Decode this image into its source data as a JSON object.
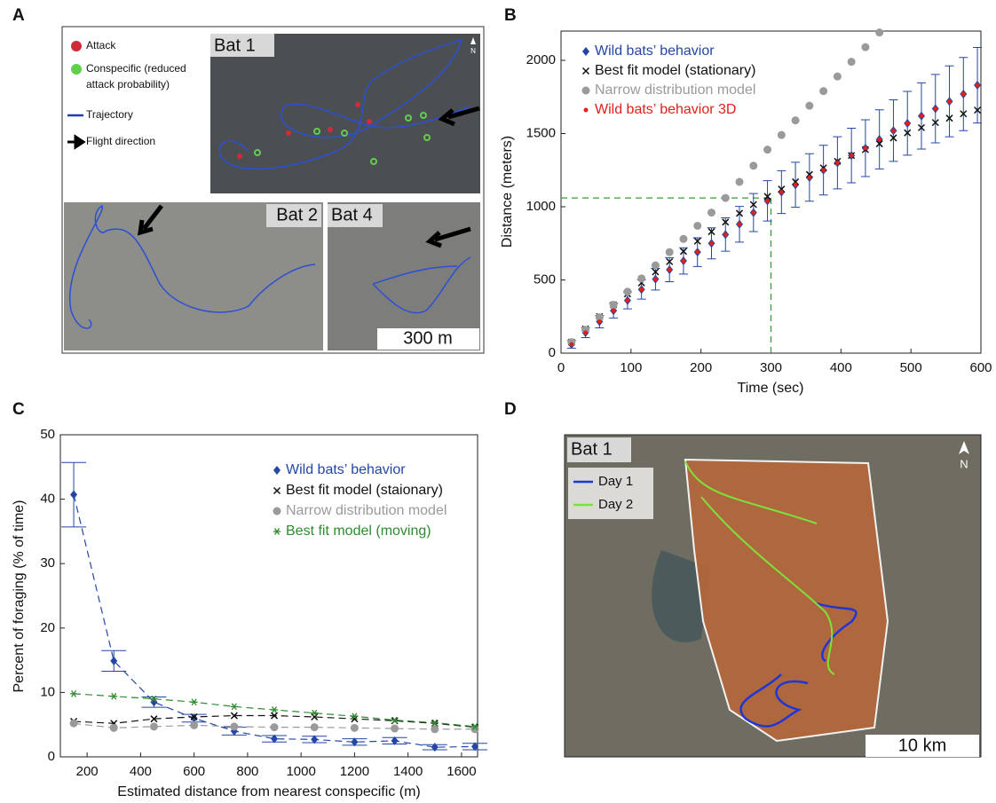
{
  "chart_data": [
    {
      "type": "scatter",
      "label": "B",
      "xlabel": "Time (sec)",
      "ylabel": "Distance (meters)",
      "xlim": [
        0,
        600
      ],
      "xticks": [
        0,
        100,
        200,
        300,
        400,
        500,
        600
      ],
      "ylim": [
        0,
        2200
      ],
      "yticks": [
        0,
        500,
        1000,
        1500,
        2000
      ],
      "x": [
        15,
        35,
        55,
        75,
        95,
        115,
        135,
        155,
        175,
        195,
        215,
        235,
        255,
        275,
        295,
        315,
        335,
        355,
        375,
        395,
        415,
        435,
        455,
        475,
        495,
        515,
        535,
        555,
        575,
        595
      ],
      "series": [
        {
          "name": "Wild bats’ behavior",
          "color": "#2446a6",
          "marker": "diamond",
          "values": [
            60,
            140,
            215,
            290,
            360,
            435,
            505,
            570,
            630,
            690,
            750,
            810,
            880,
            960,
            1040,
            1100,
            1150,
            1200,
            1250,
            1300,
            1350,
            1400,
            1460,
            1520,
            1570,
            1620,
            1670,
            1720,
            1770,
            1830
          ],
          "errors": [
            26,
            34,
            42,
            50,
            58,
            66,
            74,
            82,
            90,
            98,
            106,
            114,
            122,
            130,
            138,
            146,
            154,
            162,
            170,
            178,
            186,
            194,
            202,
            210,
            218,
            226,
            234,
            242,
            250,
            258
          ]
        },
        {
          "name": "Best fit model (stationary)",
          "color": "#111111",
          "marker": "x",
          "values": [
            75,
            165,
            250,
            330,
            405,
            480,
            555,
            625,
            695,
            765,
            830,
            895,
            955,
            1015,
            1070,
            1120,
            1170,
            1220,
            1265,
            1310,
            1350,
            1390,
            1430,
            1470,
            1505,
            1540,
            1575,
            1605,
            1635,
            1660
          ]
        },
        {
          "name": "Narrow distribution model",
          "color": "#9a9a9a",
          "marker": "circle",
          "values": [
            75,
            160,
            245,
            330,
            420,
            510,
            600,
            690,
            780,
            870,
            960,
            1060,
            1170,
            1280,
            1390,
            1490,
            1590,
            1690,
            1790,
            1890,
            1990,
            2090,
            2190,
            null,
            null,
            null,
            null,
            null,
            null,
            null
          ]
        },
        {
          "name": "Wild bats’ behavior 3D",
          "color": "#e0201b",
          "marker": "dot",
          "values": [
            60,
            140,
            215,
            290,
            360,
            435,
            505,
            570,
            630,
            690,
            750,
            810,
            880,
            960,
            1040,
            1100,
            1150,
            1200,
            1250,
            1300,
            1350,
            1400,
            1460,
            1520,
            1570,
            1620,
            1670,
            1720,
            1770,
            1830
          ]
        }
      ],
      "reference": {
        "x": 300,
        "y": 1060,
        "color": "#3a9a3a"
      }
    },
    {
      "type": "line",
      "label": "C",
      "xlabel": "Estimated distance from nearest conspecific (m)",
      "ylabel": "Percent of foraging (% of time)",
      "xlim": [
        100,
        1660
      ],
      "xticks": [
        200,
        400,
        600,
        800,
        1000,
        1200,
        1400,
        1600
      ],
      "ylim": [
        0,
        50
      ],
      "yticks": [
        0,
        10,
        20,
        30,
        40,
        50
      ],
      "line_style": "dashed",
      "x": [
        150,
        300,
        450,
        600,
        750,
        900,
        1050,
        1200,
        1350,
        1500,
        1650
      ],
      "series": [
        {
          "name": "Wild bats’ behavior",
          "color": "#2446a6",
          "marker": "diamond",
          "values": [
            40.7,
            14.9,
            8.5,
            6.0,
            4.0,
            2.8,
            2.7,
            2.3,
            2.5,
            1.5,
            1.6
          ],
          "errors": [
            5,
            1.6,
            0.8,
            0.6,
            0.6,
            0.5,
            0.5,
            0.5,
            0.5,
            0.4,
            0.5
          ]
        },
        {
          "name": "Best fit model (staionary)",
          "color": "#111111",
          "marker": "x",
          "values": [
            5.5,
            5.2,
            5.9,
            6.2,
            6.4,
            6.4,
            6.2,
            5.9,
            5.6,
            5.2,
            4.6
          ]
        },
        {
          "name": "Narrow distribution model",
          "color": "#9a9a9a",
          "marker": "circle",
          "values": [
            5.2,
            4.5,
            4.7,
            4.9,
            4.7,
            4.6,
            4.6,
            4.5,
            4.4,
            4.3,
            4.3
          ]
        },
        {
          "name": "Best fit model (moving)",
          "color": "#2e8b2e",
          "marker": "star",
          "values": [
            9.8,
            9.4,
            9.0,
            8.5,
            7.8,
            7.3,
            6.8,
            6.3,
            5.7,
            5.3,
            4.7
          ]
        }
      ]
    }
  ],
  "maps": [
    {
      "label": "A",
      "legend": [
        "Attack",
        "Conspecific (reduced",
        "attack probability)",
        "Trajectory",
        "Flight direction"
      ],
      "insets": [
        "Bat 1",
        "Bat 2",
        "Bat 4"
      ],
      "north": "N",
      "scale": "300 m"
    },
    {
      "label": "D",
      "inset": "Bat 1",
      "legend": [
        "Day 1",
        "Day 2"
      ],
      "north": "N",
      "scale": "10 km"
    }
  ]
}
